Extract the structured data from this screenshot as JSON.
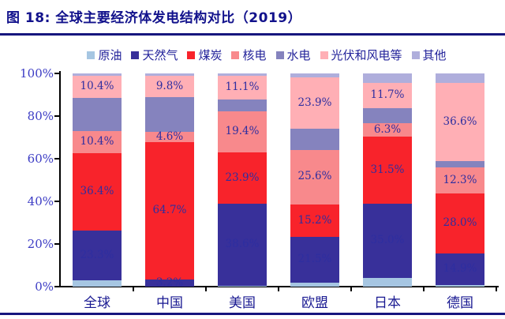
{
  "figure": {
    "title": "图 18: 全球主要经济体发电结构对比（2019）"
  },
  "chart_data": {
    "type": "bar",
    "stacked": true,
    "unit": "%",
    "grid": false,
    "legend_position": "top",
    "categories": [
      "全球",
      "中国",
      "美国",
      "欧盟",
      "日本",
      "德国"
    ],
    "series": [
      {
        "name": "原油",
        "color": "#A6C6E2",
        "labeled": false,
        "values": [
          2.9,
          0.0,
          0.4,
          1.9,
          3.9,
          0.8
        ]
      },
      {
        "name": "天然气",
        "color": "#38309A",
        "labeled": true,
        "values": [
          23.3,
          3.2,
          38.6,
          21.5,
          35.0,
          14.9
        ]
      },
      {
        "name": "煤炭",
        "color": "#F8232B",
        "labeled": true,
        "values": [
          36.4,
          64.7,
          23.9,
          15.2,
          31.5,
          28.0
        ]
      },
      {
        "name": "核电",
        "color": "#F8898C",
        "labeled": true,
        "values": [
          10.4,
          4.6,
          19.4,
          25.6,
          6.3,
          12.3
        ]
      },
      {
        "name": "水电",
        "color": "#8583BE",
        "labeled": false,
        "values": [
          15.6,
          16.5,
          5.6,
          10.0,
          7.0,
          3.0
        ]
      },
      {
        "name": "光伏和风电等",
        "color": "#FFAFB5",
        "labeled": true,
        "values": [
          10.4,
          9.8,
          11.1,
          23.9,
          11.7,
          36.6
        ]
      },
      {
        "name": "其他",
        "color": "#AFAEDC",
        "labeled": false,
        "values": [
          1.0,
          1.2,
          1.0,
          1.9,
          4.6,
          4.4
        ]
      }
    ],
    "y_axis": {
      "min": 0,
      "max": 100,
      "ticks": [
        "0%",
        "20%",
        "40%",
        "60%",
        "80%",
        "100%"
      ]
    }
  }
}
